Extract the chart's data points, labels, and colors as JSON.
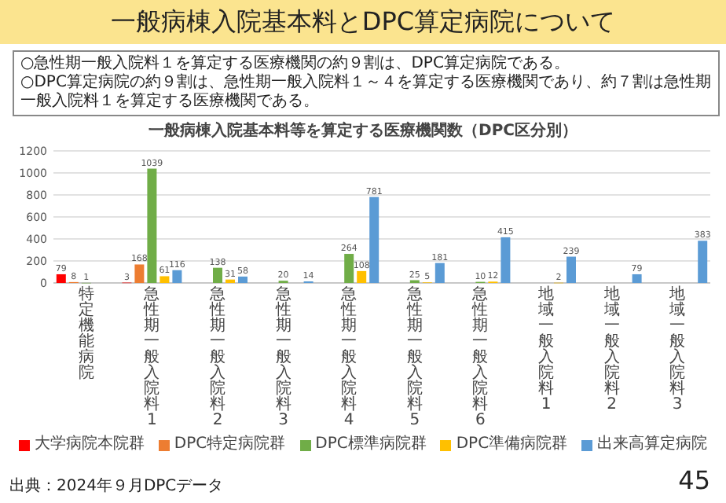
{
  "chart_data": {
    "type": "bar",
    "title": "一般病棟入院基本料とDPC算定病院について",
    "subtitle": "一般病棟入院基本料等を算定する医療機関数（DPC区分別）",
    "annotations": [
      "○急性期一般入院料１を算定する医療機関の約９割は、DPC算定病院である。",
      "○DPC算定病院の約９割は、急性期一般入院料１～４を算定する医療機関であり、約７割は急性期一般入院料１を算定する医療機関である。",
      "出典：2024年９月DPCデータ",
      "45"
    ],
    "categories": [
      "特定機能病院",
      "急性期一般入院料1",
      "急性期一般入院料2",
      "急性期一般入院料3",
      "急性期一般入院料4",
      "急性期一般入院料5",
      "急性期一般入院料6",
      "地域一般入院料1",
      "地域一般入院料2",
      "地域一般入院料3"
    ],
    "series": [
      {
        "name": "大学病院本院群",
        "color": "#ff0000",
        "values": [
          79,
          3,
          null,
          null,
          null,
          null,
          null,
          null,
          null,
          null
        ]
      },
      {
        "name": "DPC特定病院群",
        "color": "#ed7d31",
        "values": [
          8,
          168,
          null,
          null,
          null,
          null,
          null,
          null,
          null,
          null
        ]
      },
      {
        "name": "DPC標準病院群",
        "color": "#70ad47",
        "values": [
          1,
          1039,
          138,
          20,
          264,
          25,
          10,
          null,
          null,
          null
        ]
      },
      {
        "name": "DPC準備病院群",
        "color": "#ffc000",
        "values": [
          null,
          61,
          31,
          null,
          108,
          5,
          12,
          2,
          null,
          null
        ]
      },
      {
        "name": "出来高算定病院",
        "color": "#5b9bd5",
        "values": [
          null,
          116,
          58,
          14,
          781,
          181,
          415,
          239,
          79,
          383
        ]
      }
    ],
    "ylim": [
      0,
      1200
    ],
    "yticks": [
      0,
      200,
      400,
      600,
      800,
      1000,
      1200
    ],
    "grid": "y",
    "legend": "bottom",
    "data_labels": true
  }
}
